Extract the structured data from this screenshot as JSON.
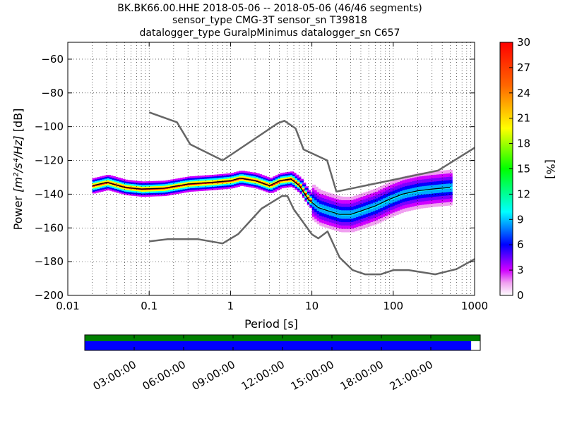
{
  "title_lines": [
    "BK.BK66.00.HHE   2018-05-06 -- 2018-05-06  (46/46 segments)",
    "sensor_type CMG-3T sensor_sn T39818",
    "datalogger_type GuralpMinimus datalogger_sn C657"
  ],
  "colors": {
    "noise_model": "#666666",
    "mean_curve": "#000000",
    "gap_bar_top": "#008000",
    "gap_bar_bottom": "#0000ff",
    "frame": "#000000"
  },
  "chart_data": {
    "type": "heatmap",
    "xlabel": "Period [s]",
    "ylabel": "Power [m²/s⁴/Hz] [dB]",
    "ylabel_parts": {
      "prefix": "Power ",
      "math": "[m²/s⁴/Hz]",
      "suffix": " [dB]"
    },
    "x_scale": "log",
    "xlim": [
      0.01,
      1000
    ],
    "ylim": [
      -200,
      -50
    ],
    "x_ticks": [
      0.01,
      0.1,
      1,
      10,
      100,
      1000
    ],
    "x_tick_labels": [
      "0.01",
      "0.1",
      "1",
      "10",
      "100",
      "1000"
    ],
    "y_ticks": [
      -200,
      -180,
      -160,
      -140,
      -120,
      -100,
      -80,
      -60
    ],
    "y_tick_labels": [
      "−200",
      "−180",
      "−160",
      "−140",
      "−120",
      "−100",
      "−80",
      "−60"
    ],
    "grid": true,
    "colorbar": {
      "label": "[%]",
      "range": [
        0,
        30
      ],
      "ticks": [
        0,
        3,
        6,
        9,
        12,
        15,
        18,
        21,
        24,
        27,
        30
      ],
      "tick_labels": [
        "0",
        "3",
        "6",
        "9",
        "12",
        "15",
        "18",
        "21",
        "24",
        "27",
        "30"
      ],
      "colormap": "pqlx"
    },
    "new_high_noise_model": {
      "x": [
        0.1,
        0.22,
        0.32,
        0.8,
        3.8,
        4.6,
        6.3,
        7.9,
        15.4,
        20,
        354.8,
        1000
      ],
      "y": [
        -91.5,
        -97.4,
        -110.5,
        -120,
        -98,
        -96.5,
        -101,
        -113.5,
        -120,
        -138.5,
        -126,
        -112.5
      ]
    },
    "new_low_noise_model": {
      "x": [
        0.1,
        0.17,
        0.4,
        0.8,
        1.24,
        2.4,
        4.3,
        5,
        6,
        10,
        12,
        15.6,
        21.9,
        31.6,
        45,
        70,
        101,
        154,
        328,
        600,
        1000
      ],
      "y": [
        -168,
        -166.7,
        -166.7,
        -169.2,
        -163.7,
        -148.6,
        -141.1,
        -141.1,
        -149,
        -163.8,
        -166.2,
        -162.1,
        -177.5,
        -185,
        -187.5,
        -187.5,
        -185,
        -185,
        -187.5,
        -184.4,
        -178.5
      ]
    },
    "mean_psd": {
      "x": [
        0.02,
        0.03,
        0.05,
        0.08,
        0.15,
        0.3,
        0.6,
        1.0,
        1.3,
        2.0,
        3.0,
        4.0,
        5.5,
        7.0,
        9.0,
        12,
        16,
        22,
        30,
        40,
        60,
        90,
        130,
        200,
        300,
        500
      ],
      "y": [
        -135,
        -133,
        -136,
        -137,
        -136.5,
        -134,
        -133,
        -132,
        -130.5,
        -132,
        -135,
        -132,
        -131,
        -135,
        -143,
        -148,
        -150,
        -152,
        -152,
        -150,
        -147,
        -143,
        -140,
        -138,
        -137,
        -136
      ]
    },
    "gap_timeline": {
      "time_ticks": [
        "03:00:00",
        "06:00:00",
        "09:00:00",
        "12:00:00",
        "15:00:00",
        "18:00:00",
        "21:00:00"
      ],
      "data_coverage_fraction": 0.977
    }
  }
}
